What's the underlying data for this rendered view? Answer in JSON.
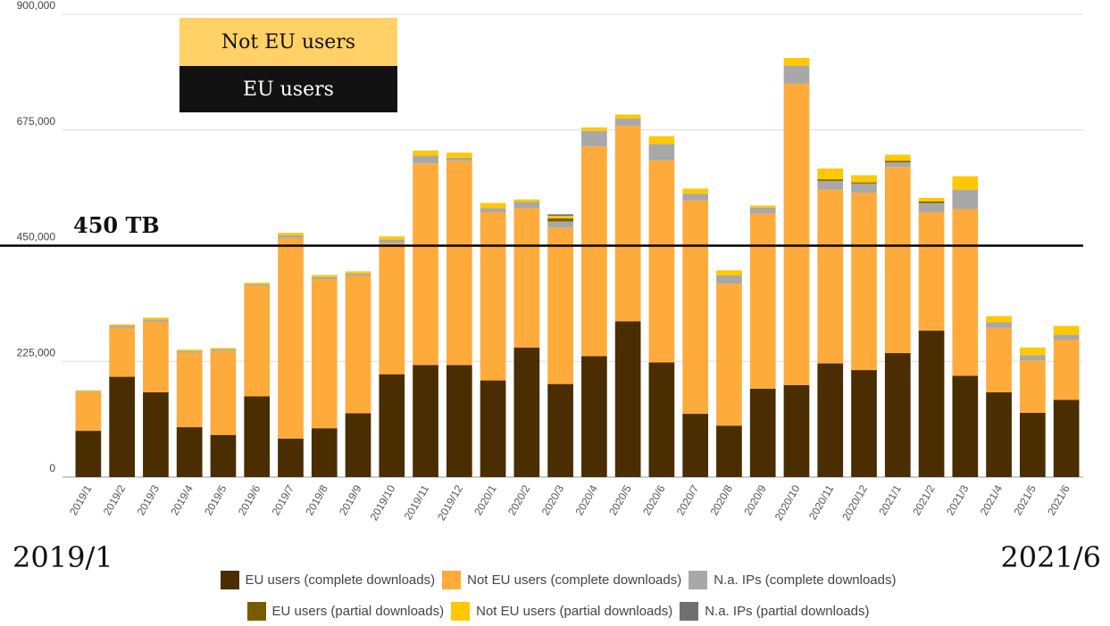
{
  "chart_data": {
    "type": "bar",
    "stacked": true,
    "categories": [
      "2019/1",
      "2019/2",
      "2019/3",
      "2019/4",
      "2019/5",
      "2019/6",
      "2019/7",
      "2019/8",
      "2019/9",
      "2019/10",
      "2019/11",
      "2019/12",
      "2020/1",
      "2020/2",
      "2020/3",
      "2020/4",
      "2020/5",
      "2020/6",
      "2020/7",
      "2020/8",
      "2020/9",
      "2020/10",
      "2020/11",
      "2020/12",
      "2021/1",
      "2021/2",
      "2021/3",
      "2021/4",
      "2021/5",
      "2021/6"
    ],
    "series": [
      {
        "name": "EU users (complete downloads)",
        "color": "#4a2d00",
        "values": [
          90000,
          195000,
          165000,
          97000,
          82000,
          157000,
          75000,
          95000,
          124000,
          200000,
          218000,
          218000,
          188000,
          252000,
          181000,
          235000,
          303000,
          223000,
          123000,
          100000,
          172000,
          179000,
          221000,
          208000,
          241000,
          285000,
          197000,
          165000,
          125000,
          150000
        ]
      },
      {
        "name": "Not EU users (complete downloads)",
        "color": "#ffab3c",
        "values": [
          75000,
          95000,
          137000,
          145000,
          163000,
          215000,
          390000,
          290000,
          268000,
          255000,
          392000,
          397000,
          327000,
          271000,
          304000,
          408000,
          380000,
          393000,
          415000,
          276000,
          340000,
          586000,
          338000,
          345000,
          362000,
          230000,
          324000,
          125000,
          102000,
          117000
        ]
      },
      {
        "name": "N.a. IPs (complete downloads)",
        "color": "#a8a8a8",
        "values": [
          2000,
          4000,
          4000,
          3000,
          3000,
          3000,
          5000,
          4000,
          4000,
          7000,
          15000,
          6000,
          8000,
          12000,
          12000,
          30000,
          14000,
          32000,
          13000,
          16000,
          12000,
          35000,
          17000,
          18000,
          9000,
          18000,
          38000,
          11000,
          10000,
          10000
        ]
      },
      {
        "name": "EU users (partial downloads)",
        "color": "#7a5c00",
        "values": [
          0,
          0,
          0,
          0,
          0,
          0,
          0,
          0,
          0,
          0,
          0,
          0,
          0,
          0,
          6000,
          0,
          0,
          0,
          0,
          0,
          0,
          0,
          3000,
          2000,
          3000,
          3000,
          0,
          0,
          0,
          0
        ]
      },
      {
        "name": "Not EU users (partial downloads)",
        "color": "#ffc800",
        "values": [
          2000,
          3000,
          4000,
          3000,
          3000,
          3000,
          5000,
          4000,
          4000,
          6000,
          10000,
          10000,
          10000,
          5000,
          5000,
          7000,
          8000,
          15000,
          10000,
          10000,
          4000,
          15000,
          21000,
          14000,
          12000,
          7000,
          26000,
          12000,
          15000,
          17000
        ]
      },
      {
        "name": "N.a. IPs (partial downloads)",
        "color": "#707070",
        "values": [
          0,
          0,
          0,
          0,
          0,
          0,
          0,
          0,
          0,
          0,
          0,
          0,
          0,
          0,
          3000,
          0,
          0,
          0,
          0,
          0,
          0,
          0,
          0,
          0,
          0,
          0,
          0,
          0,
          0,
          0
        ]
      }
    ],
    "y_ticks": [
      "0",
      "225,000",
      "450,000",
      "675,000",
      "900,000"
    ],
    "ylim": [
      0,
      900000
    ],
    "grid": true,
    "legend_position": "bottom",
    "reference_line": {
      "value": 450000,
      "label": "450 TB",
      "color": "#000000"
    },
    "annotations": {
      "box_not_eu": {
        "text": "Not EU users",
        "bg": "#ffd166",
        "color": "#111111"
      },
      "box_eu": {
        "text": "EU users",
        "bg": "#121212",
        "color": "#ffffff"
      },
      "start_label": "2019/1",
      "end_label": "2021/6"
    }
  },
  "legend": [
    {
      "label": "EU users (complete downloads)",
      "color": "#4a2d00"
    },
    {
      "label": "Not EU users (complete downloads)",
      "color": "#ffab3c"
    },
    {
      "label": "N.a. IPs (complete downloads)",
      "color": "#a8a8a8"
    },
    {
      "label": "EU users (partial downloads)",
      "color": "#7a5c00"
    },
    {
      "label": "Not EU users (partial downloads)",
      "color": "#ffc800"
    },
    {
      "label": "N.a. IPs (partial downloads)",
      "color": "#707070"
    }
  ]
}
